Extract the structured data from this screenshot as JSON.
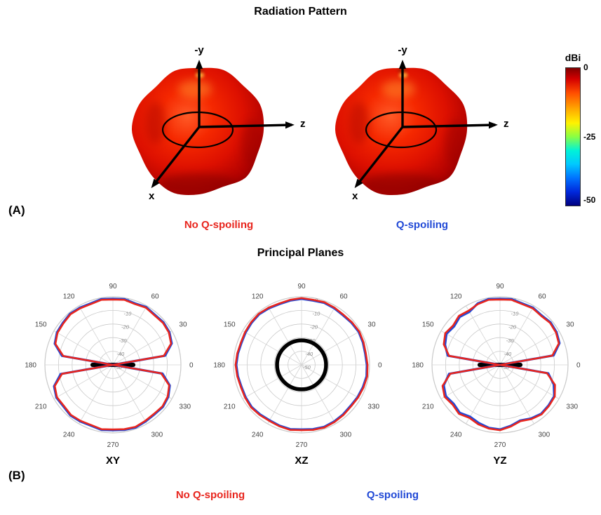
{
  "figure": {
    "panel_a": {
      "tag": "(A)",
      "title": "Radiation Pattern",
      "colorbar": {
        "title": "dBi",
        "ticks": [
          "0",
          "-25",
          "-50"
        ]
      },
      "patterns": [
        {
          "label": "No Q-spoiling",
          "color": "#e8251d",
          "axis_up": "-y",
          "axis_right": "z",
          "axis_down": "x"
        },
        {
          "label": "Q-spoiling",
          "color": "#2149d6",
          "axis_up": "-y",
          "axis_right": "z",
          "axis_down": "x"
        }
      ]
    },
    "panel_b": {
      "tag": "(B)",
      "title": "Principal Planes",
      "legend": [
        {
          "label": "No Q-spoiling",
          "color": "#e8251d"
        },
        {
          "label": "Q-spoiling",
          "color": "#2149d6"
        }
      ]
    }
  },
  "chart_data": [
    {
      "type": "line",
      "polar": true,
      "title": "XY",
      "rlim": [
        -50,
        0
      ],
      "rticks": [
        0,
        -10,
        -20,
        -30,
        -40,
        -50
      ],
      "angle_ticks": [
        0,
        30,
        60,
        90,
        120,
        150,
        180,
        210,
        240,
        270,
        300,
        330
      ],
      "angles_deg": [
        0,
        10,
        20,
        30,
        40,
        50,
        60,
        70,
        80,
        90,
        100,
        110,
        120,
        130,
        140,
        150,
        160,
        170,
        180,
        190,
        200,
        210,
        220,
        230,
        240,
        250,
        260,
        270,
        280,
        290,
        300,
        310,
        320,
        330,
        340,
        350
      ],
      "series": [
        {
          "name": "No Q-spoiling",
          "color": "#e8251d",
          "values_db": [
            -50,
            -12,
            -4.5,
            -2.5,
            -2,
            -2.5,
            -1.5,
            -2.5,
            -1.5,
            -2,
            -1.5,
            -2.5,
            -2,
            -1.5,
            -2.5,
            -3,
            -5,
            -13,
            -50,
            -12,
            -4.5,
            -2.5,
            -3,
            -2,
            -2.5,
            -3,
            -2,
            -2.5,
            -2,
            -1.5,
            -2.5,
            -3,
            -2.5,
            -3.5,
            -6,
            -14
          ]
        },
        {
          "name": "Q-spoiling",
          "color": "#2149d6",
          "values_db": [
            -50,
            -11,
            -4,
            -2,
            -1.5,
            -2,
            -1,
            -2,
            -1,
            -1.5,
            -1,
            -2,
            -1.5,
            -1,
            -2,
            -2.5,
            -4.5,
            -12,
            -50,
            -11,
            -4,
            -2,
            -2.5,
            -1.5,
            -2,
            -2.5,
            -1.5,
            -2,
            -1.5,
            -1,
            -2,
            -2.5,
            -2,
            -3,
            -5.5,
            -13
          ]
        }
      ],
      "overlay": {
        "shape": "hline",
        "half_width_frac": 0.3
      }
    },
    {
      "type": "line",
      "polar": true,
      "title": "XZ",
      "rlim": [
        -50,
        0
      ],
      "rticks": [
        0,
        -10,
        -20,
        -30,
        -40,
        -50
      ],
      "angle_ticks": [
        0,
        30,
        60,
        90,
        120,
        150,
        180,
        210,
        240,
        270,
        300,
        330
      ],
      "angles_deg": [
        0,
        10,
        20,
        30,
        40,
        50,
        60,
        70,
        80,
        90,
        100,
        110,
        120,
        130,
        140,
        150,
        160,
        170,
        180,
        190,
        200,
        210,
        220,
        230,
        240,
        250,
        260,
        270,
        280,
        290,
        300,
        310,
        320,
        330,
        340,
        350
      ],
      "series": [
        {
          "name": "No Q-spoiling",
          "color": "#e8251d",
          "values_db": [
            -1.5,
            -2,
            -1.5,
            -1,
            -1.5,
            -2,
            -1.5,
            -1,
            -1.5,
            -1,
            -1.5,
            -2,
            -1.5,
            -1,
            -1.5,
            -2,
            -2.5,
            -2,
            -1.5,
            -2,
            -2.5,
            -2,
            -1.5,
            -2,
            -2.5,
            -2,
            -1.5,
            -2,
            -1.5,
            -1,
            -1.5,
            -2,
            -2.5,
            -2,
            -1.5,
            -1
          ]
        },
        {
          "name": "Q-spoiling",
          "color": "#2149d6",
          "values_db": [
            -2,
            -2.5,
            -2,
            -1.5,
            -2,
            -2.5,
            -2,
            -1.5,
            -2,
            -1.5,
            -2,
            -2.5,
            -2,
            -1.5,
            -2,
            -2.5,
            -3,
            -2.5,
            -2,
            -2.5,
            -3,
            -2.5,
            -2,
            -2.5,
            -3,
            -2.5,
            -2,
            -2.5,
            -2,
            -1.5,
            -2,
            -2.5,
            -3,
            -2.5,
            -2,
            -1.5
          ]
        }
      ],
      "overlay": {
        "shape": "circle",
        "radius_frac": 0.36
      }
    },
    {
      "type": "line",
      "polar": true,
      "title": "YZ",
      "rlim": [
        -50,
        0
      ],
      "rticks": [
        0,
        -10,
        -20,
        -30,
        -40,
        -50
      ],
      "angle_ticks": [
        0,
        30,
        60,
        90,
        120,
        150,
        180,
        210,
        240,
        270,
        300,
        330
      ],
      "angles_deg": [
        0,
        10,
        20,
        30,
        40,
        50,
        60,
        70,
        80,
        90,
        100,
        110,
        120,
        130,
        140,
        150,
        160,
        170,
        180,
        190,
        200,
        210,
        220,
        230,
        240,
        250,
        260,
        270,
        280,
        290,
        300,
        310,
        320,
        330,
        340,
        350
      ],
      "series": [
        {
          "name": "No Q-spoiling",
          "color": "#e8251d",
          "values_db": [
            -50,
            -11,
            -4,
            -2.5,
            -2,
            -3,
            -2,
            -2.5,
            -1.5,
            -2,
            -1.5,
            -2.5,
            -4,
            -3,
            -5,
            -3.5,
            -6,
            -12,
            -50,
            -13,
            -5,
            -3,
            -4.5,
            -3,
            -5,
            -3.5,
            -2.5,
            -2,
            -4,
            -6,
            -4,
            -2.5,
            -3,
            -3.5,
            -7,
            -15
          ]
        },
        {
          "name": "Q-spoiling",
          "color": "#2149d6",
          "values_db": [
            -50,
            -10,
            -3.5,
            -2,
            -1.5,
            -2.5,
            -1.5,
            -2,
            -1,
            -1.5,
            -1,
            -2,
            -5,
            -4,
            -6,
            -4.5,
            -7,
            -11,
            -50,
            -12,
            -6,
            -4,
            -5.5,
            -4,
            -6,
            -4.5,
            -3,
            -2.5,
            -4.5,
            -6.5,
            -4.5,
            -3,
            -3.5,
            -4,
            -8,
            -14
          ]
        }
      ],
      "overlay": {
        "shape": "hline",
        "half_width_frac": 0.3
      }
    }
  ]
}
